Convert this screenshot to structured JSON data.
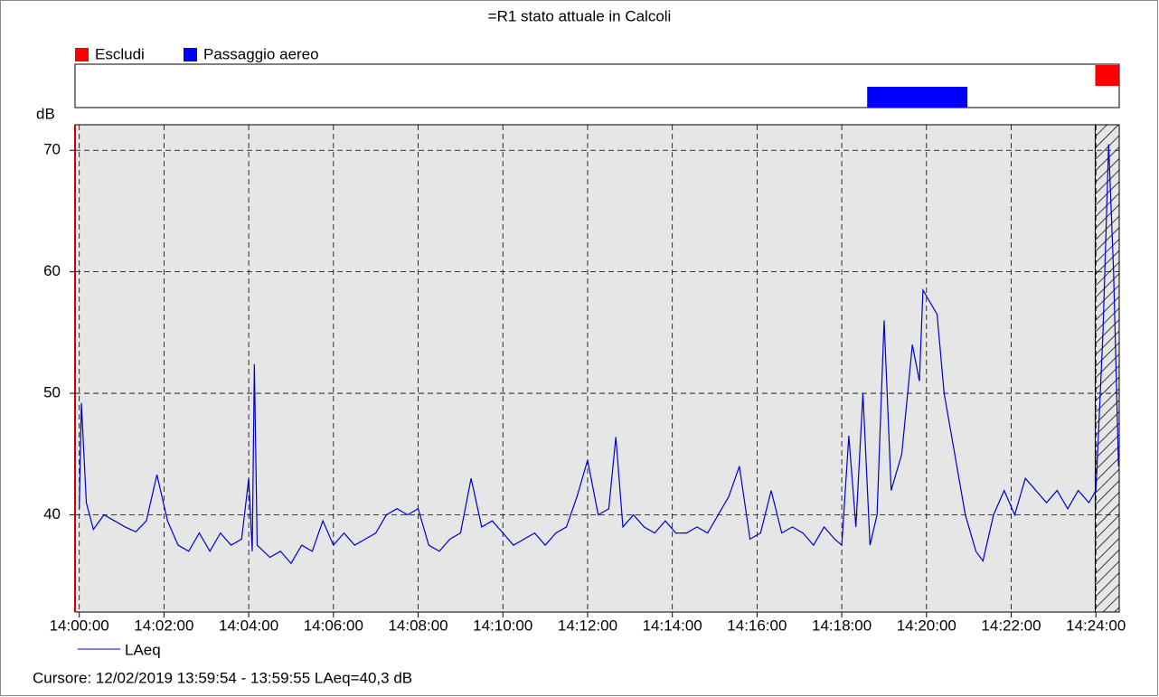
{
  "chart_data": {
    "type": "line",
    "title": "=R1 stato attuale in Calcoli",
    "y_label": "dB",
    "events": [
      {
        "name": "Escludi",
        "color": "#ff0000",
        "start": "14:23:59",
        "end": "14:24:33"
      },
      {
        "name": "Passaggio aereo",
        "color": "#0000ff",
        "start": "14:18:36",
        "end": "14:20:58"
      }
    ],
    "x": [
      "14:00:00",
      "14:00:03",
      "14:00:10",
      "14:00:20",
      "14:00:35",
      "14:00:50",
      "14:01:05",
      "14:01:20",
      "14:01:35",
      "14:01:50",
      "14:02:05",
      "14:02:20",
      "14:02:35",
      "14:02:50",
      "14:03:05",
      "14:03:20",
      "14:03:35",
      "14:03:50",
      "14:04:00",
      "14:04:05",
      "14:04:08",
      "14:04:12",
      "14:04:30",
      "14:04:45",
      "14:05:00",
      "14:05:15",
      "14:05:30",
      "14:05:45",
      "14:06:00",
      "14:06:15",
      "14:06:30",
      "14:06:45",
      "14:07:00",
      "14:07:15",
      "14:07:30",
      "14:07:45",
      "14:08:00",
      "14:08:15",
      "14:08:30",
      "14:08:45",
      "14:09:00",
      "14:09:15",
      "14:09:30",
      "14:09:45",
      "14:10:00",
      "14:10:15",
      "14:10:30",
      "14:10:45",
      "14:11:00",
      "14:11:15",
      "14:11:30",
      "14:11:45",
      "14:12:00",
      "14:12:15",
      "14:12:30",
      "14:12:40",
      "14:12:50",
      "14:13:05",
      "14:13:20",
      "14:13:35",
      "14:13:50",
      "14:14:05",
      "14:14:20",
      "14:14:35",
      "14:14:50",
      "14:15:05",
      "14:15:20",
      "14:15:35",
      "14:15:50",
      "14:16:05",
      "14:16:20",
      "14:16:35",
      "14:16:50",
      "14:17:05",
      "14:17:20",
      "14:17:35",
      "14:17:50",
      "14:18:00",
      "14:18:10",
      "14:18:20",
      "14:18:30",
      "14:18:40",
      "14:18:50",
      "14:19:00",
      "14:19:10",
      "14:19:25",
      "14:19:40",
      "14:19:50",
      "14:19:55",
      "14:20:05",
      "14:20:15",
      "14:20:25",
      "14:20:40",
      "14:20:55",
      "14:21:10",
      "14:21:20",
      "14:21:35",
      "14:21:50",
      "14:22:05",
      "14:22:20",
      "14:22:35",
      "14:22:50",
      "14:23:05",
      "14:23:20",
      "14:23:35",
      "14:23:50",
      "14:24:00",
      "14:24:10",
      "14:24:18",
      "14:24:25",
      "14:24:32"
    ],
    "series": [
      {
        "name": "LAeq",
        "color": "#0000cc",
        "values": [
          40.5,
          49.2,
          41,
          38.8,
          40,
          39.5,
          39,
          38.6,
          39.5,
          43.3,
          39.5,
          37.5,
          37,
          38.5,
          37,
          38.5,
          37.5,
          38,
          43,
          37,
          52.4,
          37.5,
          36.5,
          37,
          36,
          37.5,
          37,
          39.5,
          37.5,
          38.5,
          37.5,
          38,
          38.5,
          40,
          40.5,
          40,
          40.5,
          37.5,
          37,
          38,
          38.5,
          43,
          39,
          39.5,
          38.5,
          37.5,
          38,
          38.5,
          37.5,
          38.5,
          39,
          41.5,
          44.5,
          40,
          40.5,
          46.4,
          39,
          40,
          39,
          38.5,
          39.5,
          38.5,
          38.5,
          39,
          38.5,
          40,
          41.5,
          44,
          38,
          38.5,
          42,
          38.5,
          39,
          38.5,
          37.5,
          39,
          38,
          37.5,
          46.5,
          39,
          50,
          37.5,
          40,
          56,
          42,
          45,
          54,
          51,
          58.5,
          57.5,
          56.5,
          50,
          45,
          40,
          37,
          36.2,
          40,
          42,
          40,
          43,
          42,
          41,
          42,
          40.5,
          42,
          41,
          42,
          55,
          70.5,
          60,
          44
        ]
      }
    ],
    "xlim": [
      "13:59:54",
      "14:24:33"
    ],
    "xticks": [
      "14:00:00",
      "14:02:00",
      "14:04:00",
      "14:06:00",
      "14:08:00",
      "14:10:00",
      "14:12:00",
      "14:14:00",
      "14:16:00",
      "14:18:00",
      "14:20:00",
      "14:22:00",
      "14:24:00"
    ],
    "ylim": [
      32,
      72.1
    ],
    "yticks": [
      40,
      50,
      60,
      70
    ],
    "grid": true,
    "cursor_text": "Cursore: 12/02/2019 13:59:54 - 13:59:55  LAeq=40,3 dB"
  }
}
